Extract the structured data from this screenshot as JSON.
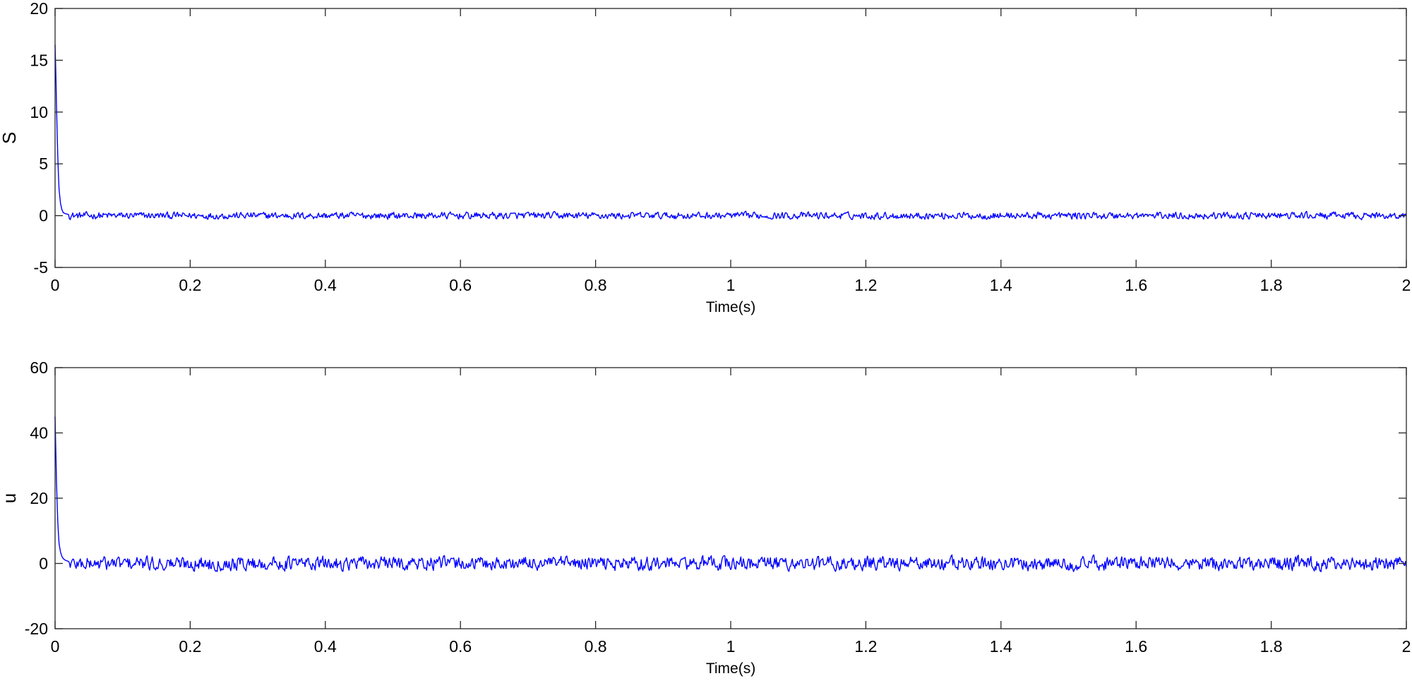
{
  "colors": {
    "series": "#0000ff",
    "axes": "#262626",
    "background": "#ffffff"
  },
  "chart_data": [
    {
      "type": "line",
      "title": "",
      "xlabel": "Time(s)",
      "ylabel": "S",
      "xlim": [
        0,
        2
      ],
      "ylim": [
        -5,
        20
      ],
      "xticks": [
        0,
        0.2,
        0.4,
        0.6,
        0.8,
        1,
        1.2,
        1.4,
        1.6,
        1.8,
        2
      ],
      "xtick_labels": [
        "0",
        "0.2",
        "0.4",
        "0.6",
        "0.8",
        "1",
        "1.2",
        "1.4",
        "1.6",
        "1.8",
        "2"
      ],
      "yticks": [
        -5,
        0,
        5,
        10,
        15,
        20
      ],
      "ytick_labels": [
        "-5",
        "0",
        "5",
        "10",
        "15",
        "20"
      ],
      "grid": false,
      "series": [
        {
          "color": "#0000ff",
          "x": [
            0,
            0.001,
            0.002,
            0.003,
            0.004,
            0.005,
            0.006,
            0.008,
            0.01,
            0.012,
            0.015,
            0.02
          ],
          "y": [
            16.5,
            14,
            11,
            8.2,
            5.8,
            3.9,
            2.5,
            1.2,
            0.6,
            0.3,
            0.2,
            0.1
          ],
          "steady_state": {
            "x_from": 0.02,
            "x_to": 2,
            "mean": 0,
            "amplitude": 0.35,
            "description": "zero-mean chattering"
          }
        }
      ]
    },
    {
      "type": "line",
      "title": "",
      "xlabel": "Time(s)",
      "ylabel": "u",
      "xlim": [
        0,
        2
      ],
      "ylim": [
        -20,
        60
      ],
      "xticks": [
        0,
        0.2,
        0.4,
        0.6,
        0.8,
        1,
        1.2,
        1.4,
        1.6,
        1.8,
        2
      ],
      "xtick_labels": [
        "0",
        "0.2",
        "0.4",
        "0.6",
        "0.8",
        "1",
        "1.2",
        "1.4",
        "1.6",
        "1.8",
        "2"
      ],
      "yticks": [
        -20,
        0,
        20,
        40,
        60
      ],
      "ytick_labels": [
        "-20",
        "0",
        "20",
        "40",
        "60"
      ],
      "grid": false,
      "series": [
        {
          "color": "#0000ff",
          "x": [
            0,
            0.001,
            0.002,
            0.003,
            0.004,
            0.005,
            0.006,
            0.008,
            0.01,
            0.012,
            0.015,
            0.02
          ],
          "y": [
            45,
            35,
            26,
            19,
            13,
            9,
            6,
            3.5,
            2.2,
            1.5,
            1,
            0.6
          ],
          "steady_state": {
            "x_from": 0.02,
            "x_to": 2,
            "mean": 0,
            "amplitude": 2.2,
            "description": "zero-mean chattering"
          }
        }
      ]
    }
  ]
}
